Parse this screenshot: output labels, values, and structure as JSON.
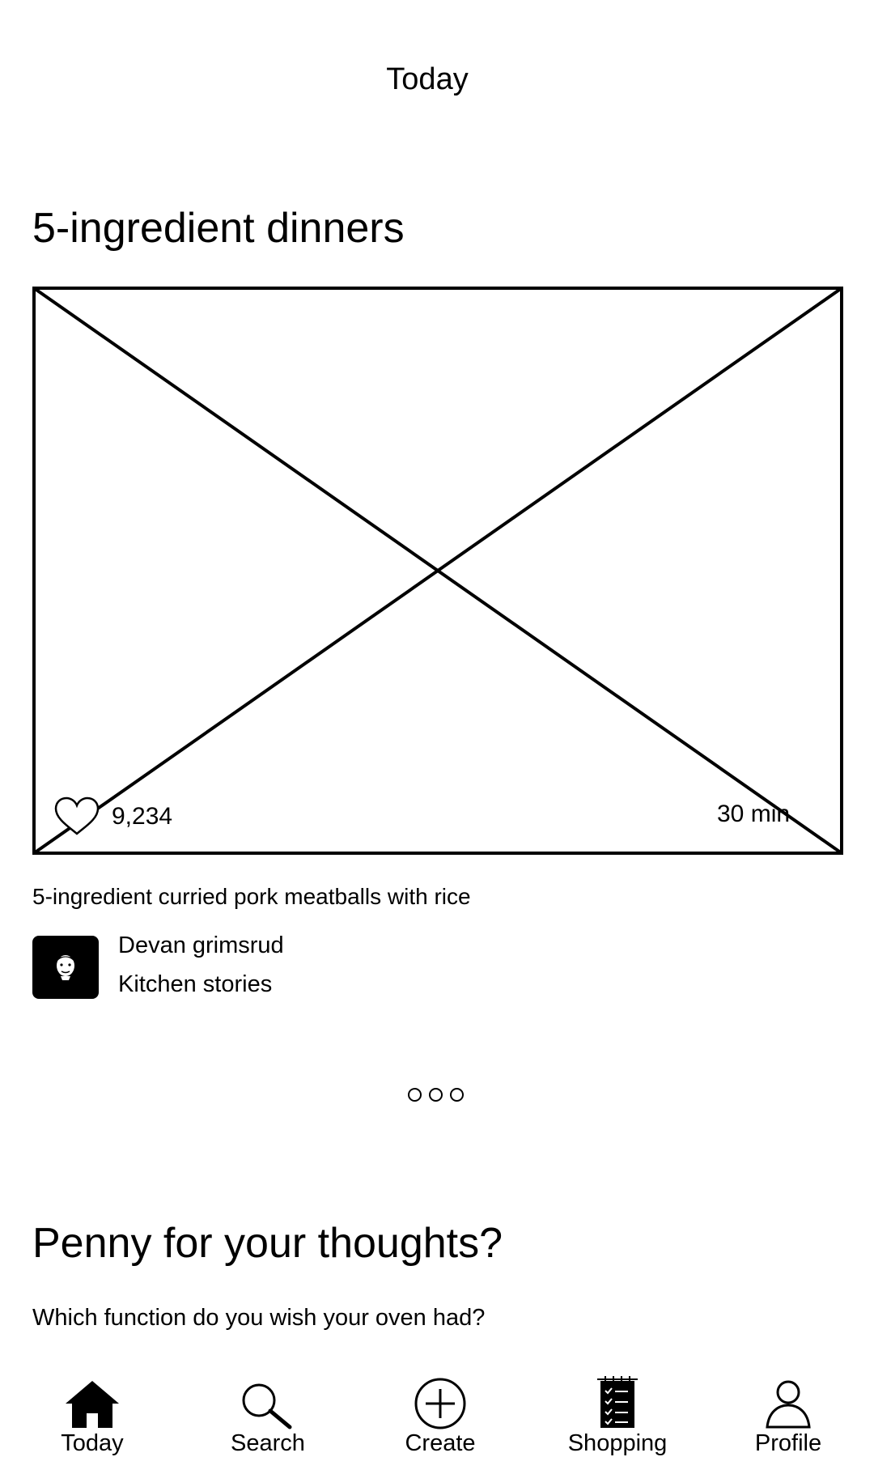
{
  "header": {
    "title": "Today"
  },
  "featured": {
    "section_title": "5-ingredient dinners",
    "image_icon": "image-placeholder-icon",
    "likes": "9,234",
    "duration": "30 min",
    "recipe_title": "5-ingredient curried pork meatballs with rice",
    "author": {
      "name": "Devan grimsrud",
      "source": "Kitchen stories",
      "avatar_icon": "avatar-face-icon"
    },
    "pagination": {
      "page_count": 3,
      "current_page": 1
    }
  },
  "feedback": {
    "title": "Penny for your thoughts?",
    "question": "Which function do you wish your oven had?"
  },
  "nav": {
    "items": [
      {
        "label": "Today",
        "icon": "home-icon",
        "active": true
      },
      {
        "label": "Search",
        "icon": "search-icon",
        "active": false
      },
      {
        "label": "Create",
        "icon": "plus-circle-icon",
        "active": false
      },
      {
        "label": "Shopping",
        "icon": "shopping-list-icon",
        "active": false
      },
      {
        "label": "Profile",
        "icon": "user-icon",
        "active": false
      }
    ]
  },
  "colors": {
    "foreground": "#000000",
    "background": "#ffffff"
  }
}
